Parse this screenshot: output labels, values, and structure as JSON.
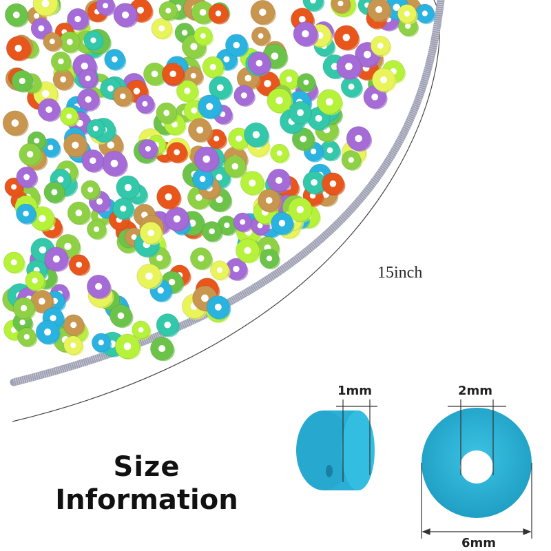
{
  "length_label": "15inch",
  "title": {
    "line1": "Size",
    "line2": "Information"
  },
  "dimensions": {
    "thickness": "1mm",
    "hole": "2mm",
    "diameter": "6mm"
  },
  "colors": {
    "bead_blue": "#2fb3d6",
    "strand_gray": "#a3a5b6",
    "palette": [
      "#8fd144",
      "#b6f23a",
      "#2ab3e0",
      "#a56bd6",
      "#e8561c",
      "#c8964e",
      "#33c8a9",
      "#e9f45a",
      "#6cc34a"
    ]
  }
}
